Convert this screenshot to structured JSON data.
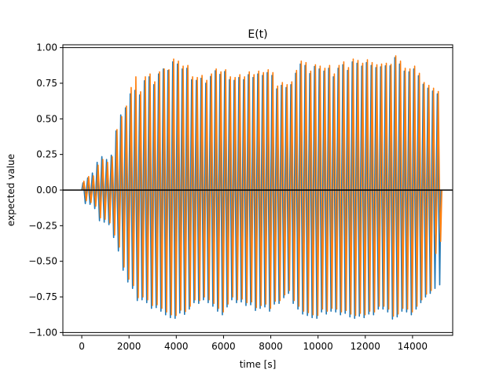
{
  "chart_data": {
    "type": "line",
    "title": "E(t)",
    "xlabel": "time [s]",
    "ylabel": "expected value",
    "xlim": [
      -800,
      15700
    ],
    "ylim": [
      -1.02,
      1.02
    ],
    "x_ticks": [
      0,
      2000,
      4000,
      6000,
      8000,
      10000,
      12000,
      14000
    ],
    "y_ticks": [
      -1.0,
      -0.75,
      -0.5,
      -0.25,
      0.0,
      0.25,
      0.5,
      0.75,
      1.0
    ],
    "x_tick_labels": [
      "0",
      "2000",
      "4000",
      "6000",
      "8000",
      "10000",
      "12000",
      "14000"
    ],
    "y_tick_labels": [
      "−1.00",
      "−0.75",
      "−0.50",
      "−0.25",
      "0.00",
      "0.25",
      "0.50",
      "0.75",
      "1.00"
    ],
    "grid": false,
    "legend": "none",
    "reference_lines": [
      {
        "axis": "y",
        "value": 1.0,
        "color": "#000000"
      },
      {
        "axis": "y",
        "value": 0.0,
        "color": "#000000"
      },
      {
        "axis": "y",
        "value": -1.0,
        "color": "#000000"
      }
    ],
    "series": [
      {
        "color": "#1f77b4",
        "x_start": 0,
        "x_end": 15200,
        "oscillation_period": 200,
        "peak_envelope": {
          "x": [
            0,
            200,
            400,
            600,
            800,
            1000,
            1200,
            1400,
            1600,
            1800,
            2000,
            2200,
            2400,
            2600,
            2800,
            3000,
            3200,
            3400,
            3600,
            3800,
            4000,
            4200,
            4400,
            4600,
            4800,
            5000,
            5200,
            5400,
            5600,
            5800,
            6000,
            6200,
            6400,
            6600,
            6800,
            7000,
            7200,
            7400,
            7600,
            7800,
            8000,
            8200,
            8400,
            8600,
            8800,
            9000,
            9200,
            9400,
            9600,
            9800,
            10000,
            10200,
            10400,
            10600,
            10800,
            11000,
            11200,
            11400,
            11600,
            11800,
            12000,
            12200,
            12400,
            12600,
            12800,
            13000,
            13200,
            13400,
            13600,
            13800,
            14000,
            14200,
            14400,
            14600,
            14800,
            15000,
            15200
          ],
          "y": [
            0.04,
            0.08,
            0.1,
            0.18,
            0.24,
            0.22,
            0.2,
            0.38,
            0.52,
            0.55,
            0.66,
            0.72,
            0.64,
            0.75,
            0.82,
            0.72,
            0.8,
            0.86,
            0.82,
            0.9,
            0.9,
            0.84,
            0.88,
            0.78,
            0.76,
            0.8,
            0.74,
            0.78,
            0.85,
            0.8,
            0.85,
            0.78,
            0.76,
            0.8,
            0.76,
            0.82,
            0.78,
            0.82,
            0.8,
            0.82,
            0.84,
            0.7,
            0.74,
            0.72,
            0.72,
            0.8,
            0.88,
            0.9,
            0.8,
            0.87,
            0.86,
            0.82,
            0.88,
            0.78,
            0.84,
            0.9,
            0.82,
            0.9,
            0.9,
            0.86,
            0.9,
            0.88,
            0.86,
            0.86,
            0.88,
            0.85,
            0.94,
            0.9,
            0.84,
            0.82,
            0.86,
            0.82,
            0.75,
            0.72,
            0.7,
            0.68,
            0.66
          ]
        },
        "trough_envelope": {
          "x": [
            0,
            200,
            400,
            600,
            800,
            1000,
            1200,
            1400,
            1600,
            1800,
            2000,
            2200,
            2400,
            2600,
            2800,
            3000,
            3200,
            3400,
            3600,
            3800,
            4000,
            4200,
            4400,
            4600,
            4800,
            5000,
            5200,
            5400,
            5600,
            5800,
            6000,
            6200,
            6400,
            6600,
            6800,
            7000,
            7200,
            7400,
            7600,
            7800,
            8000,
            8200,
            8400,
            8600,
            8800,
            9000,
            9200,
            9400,
            9600,
            9800,
            10000,
            10200,
            10400,
            10600,
            10800,
            11000,
            11200,
            11400,
            11600,
            11800,
            12000,
            12200,
            12400,
            12600,
            12800,
            13000,
            13200,
            13400,
            13600,
            13800,
            14000,
            14200,
            14400,
            14600,
            14800,
            15000,
            15200
          ],
          "y": [
            -0.08,
            -0.1,
            -0.1,
            -0.14,
            -0.24,
            -0.22,
            -0.25,
            -0.36,
            -0.45,
            -0.6,
            -0.66,
            -0.7,
            -0.8,
            -0.76,
            -0.8,
            -0.84,
            -0.82,
            -0.86,
            -0.88,
            -0.9,
            -0.9,
            -0.85,
            -0.88,
            -0.82,
            -0.78,
            -0.8,
            -0.76,
            -0.8,
            -0.82,
            -0.86,
            -0.88,
            -0.8,
            -0.76,
            -0.8,
            -0.78,
            -0.82,
            -0.8,
            -0.86,
            -0.82,
            -0.82,
            -0.86,
            -0.78,
            -0.8,
            -0.74,
            -0.72,
            -0.82,
            -0.84,
            -0.88,
            -0.88,
            -0.9,
            -0.9,
            -0.84,
            -0.88,
            -0.84,
            -0.86,
            -0.88,
            -0.86,
            -0.9,
            -0.9,
            -0.88,
            -0.9,
            -0.86,
            -0.88,
            -0.82,
            -0.84,
            -0.86,
            -0.92,
            -0.88,
            -0.84,
            -0.86,
            -0.88,
            -0.82,
            -0.78,
            -0.74,
            -0.72,
            -0.68,
            -0.66
          ]
        }
      },
      {
        "color": "#ff7f0e",
        "x_start": 0,
        "x_end": 15200,
        "oscillation_period": 200,
        "phase_offset_x": 40,
        "peak_envelope": {
          "x": [
            0,
            200,
            400,
            600,
            800,
            1000,
            1200,
            1400,
            1600,
            1800,
            2000,
            2200,
            2400,
            2600,
            2800,
            3000,
            3200,
            3400,
            3600,
            3800,
            4000,
            4200,
            4400,
            4600,
            4800,
            5000,
            5200,
            5400,
            5600,
            5800,
            6000,
            6200,
            6400,
            6600,
            6800,
            7000,
            7200,
            7400,
            7600,
            7800,
            8000,
            8200,
            8400,
            8600,
            8800,
            9000,
            9200,
            9400,
            9600,
            9800,
            10000,
            10200,
            10400,
            10600,
            10800,
            11000,
            11200,
            11400,
            11600,
            11800,
            12000,
            12200,
            12400,
            12600,
            12800,
            13000,
            13200,
            13400,
            13600,
            13800,
            14000,
            14200,
            14400,
            14600,
            14800,
            15000,
            15200
          ],
          "y": [
            0.05,
            0.1,
            0.08,
            0.16,
            0.22,
            0.2,
            0.18,
            0.4,
            0.5,
            0.56,
            0.68,
            0.84,
            0.66,
            0.78,
            0.84,
            0.74,
            0.82,
            0.86,
            0.82,
            0.92,
            0.92,
            0.86,
            0.9,
            0.8,
            0.78,
            0.82,
            0.76,
            0.8,
            0.86,
            0.82,
            0.86,
            0.8,
            0.78,
            0.82,
            0.78,
            0.84,
            0.8,
            0.84,
            0.82,
            0.84,
            0.86,
            0.72,
            0.76,
            0.74,
            0.74,
            0.82,
            0.9,
            0.92,
            0.82,
            0.88,
            0.88,
            0.84,
            0.9,
            0.8,
            0.86,
            0.92,
            0.84,
            0.92,
            0.92,
            0.88,
            0.92,
            0.9,
            0.88,
            0.88,
            0.9,
            0.86,
            0.95,
            0.92,
            0.86,
            0.84,
            0.88,
            0.84,
            0.76,
            0.74,
            0.72,
            0.7,
            0.67
          ]
        },
        "trough_envelope": {
          "x": [
            0,
            200,
            400,
            600,
            800,
            1000,
            1200,
            1400,
            1600,
            1800,
            2000,
            2200,
            2400,
            2600,
            2800,
            3000,
            3200,
            3400,
            3600,
            3800,
            4000,
            4200,
            4400,
            4600,
            4800,
            5000,
            5200,
            5400,
            5600,
            5800,
            6000,
            6200,
            6400,
            6600,
            6800,
            7000,
            7200,
            7400,
            7600,
            7800,
            8000,
            8200,
            8400,
            8600,
            8800,
            9000,
            9200,
            9400,
            9600,
            9800,
            10000,
            10200,
            10400,
            10600,
            10800,
            11000,
            11200,
            11400,
            11600,
            11800,
            12000,
            12200,
            12400,
            12600,
            12800,
            13000,
            13200,
            13400,
            13600,
            13800,
            14000,
            14200,
            14400,
            14600,
            14800,
            15000,
            15200
          ],
          "y": [
            -0.06,
            -0.08,
            -0.09,
            -0.12,
            -0.22,
            -0.2,
            -0.24,
            -0.34,
            -0.42,
            -0.58,
            -0.64,
            -0.68,
            -0.78,
            -0.74,
            -0.78,
            -0.82,
            -0.8,
            -0.84,
            -0.86,
            -0.88,
            -0.88,
            -0.83,
            -0.86,
            -0.8,
            -0.76,
            -0.78,
            -0.74,
            -0.78,
            -0.8,
            -0.84,
            -0.86,
            -0.78,
            -0.74,
            -0.78,
            -0.76,
            -0.8,
            -0.78,
            -0.84,
            -0.8,
            -0.8,
            -0.84,
            -0.76,
            -0.78,
            -0.72,
            -0.7,
            -0.8,
            -0.82,
            -0.86,
            -0.86,
            -0.88,
            -0.88,
            -0.82,
            -0.86,
            -0.82,
            -0.84,
            -0.86,
            -0.84,
            -0.88,
            -0.88,
            -0.86,
            -0.88,
            -0.84,
            -0.86,
            -0.8,
            -0.82,
            -0.84,
            -0.9,
            -0.86,
            -0.82,
            -0.84,
            -0.86,
            -0.8,
            -0.76,
            -0.72,
            -0.7,
            -0.36,
            -0.36
          ]
        }
      }
    ]
  }
}
